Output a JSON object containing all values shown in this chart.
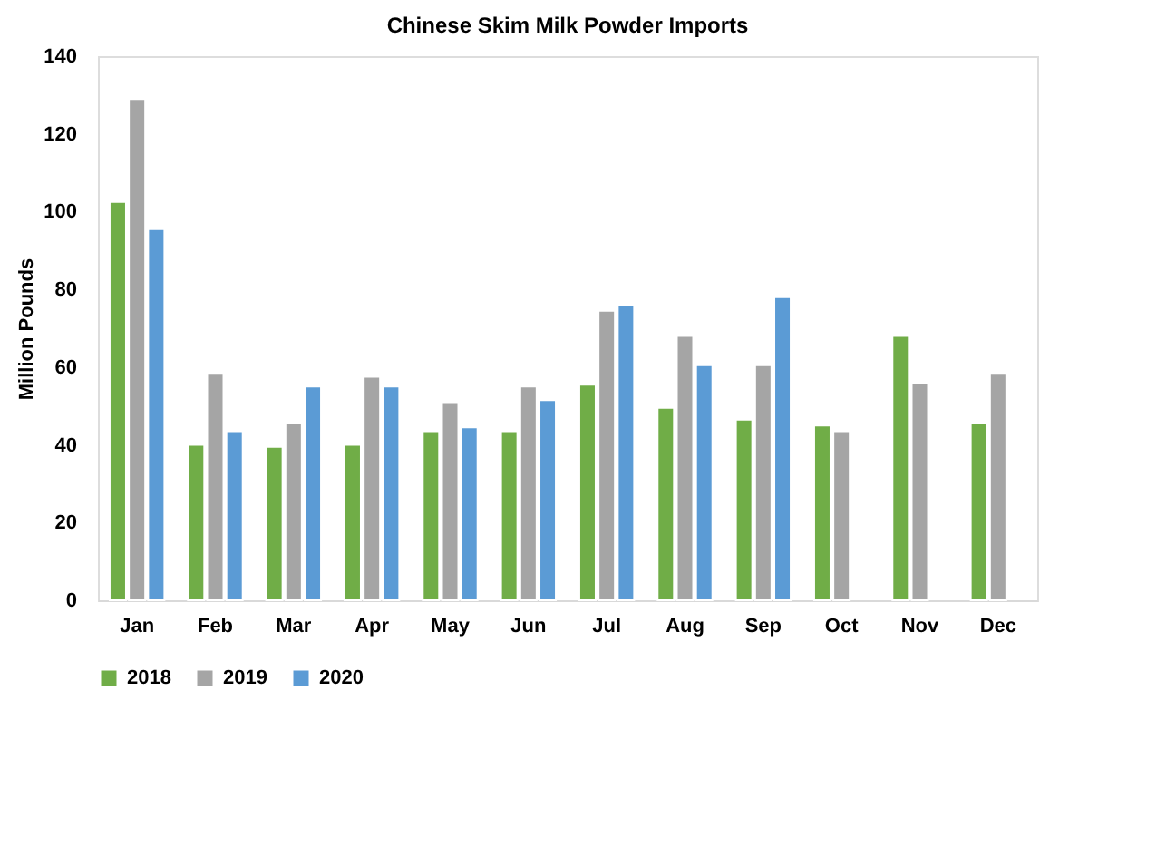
{
  "chart_data": {
    "type": "bar",
    "title": "Chinese Skim Milk Powder Imports",
    "ylabel": "Million Pounds",
    "categories": [
      "Jan",
      "Feb",
      "Mar",
      "Apr",
      "May",
      "Jun",
      "Jul",
      "Aug",
      "Sep",
      "Oct",
      "Nov",
      "Dec"
    ],
    "series": [
      {
        "name": "2018",
        "color": "#70ad47",
        "values": [
          102.5,
          40,
          39.5,
          40,
          43.5,
          43.5,
          55.5,
          49.5,
          46.5,
          45,
          68,
          45.5
        ]
      },
      {
        "name": "2019",
        "color": "#a5a5a5",
        "values": [
          129,
          58.5,
          45.5,
          57.5,
          51,
          55,
          74.5,
          68,
          60.5,
          43.5,
          56,
          58.5
        ]
      },
      {
        "name": "2020",
        "color": "#5b9bd5",
        "values": [
          95.5,
          43.5,
          55,
          55,
          44.5,
          51.5,
          76,
          60.5,
          78,
          null,
          null,
          null
        ]
      }
    ],
    "ylim": [
      0,
      140
    ],
    "yticks": [
      0,
      20,
      40,
      60,
      80,
      100,
      120,
      140
    ],
    "grid": false,
    "legend": "bottom"
  }
}
